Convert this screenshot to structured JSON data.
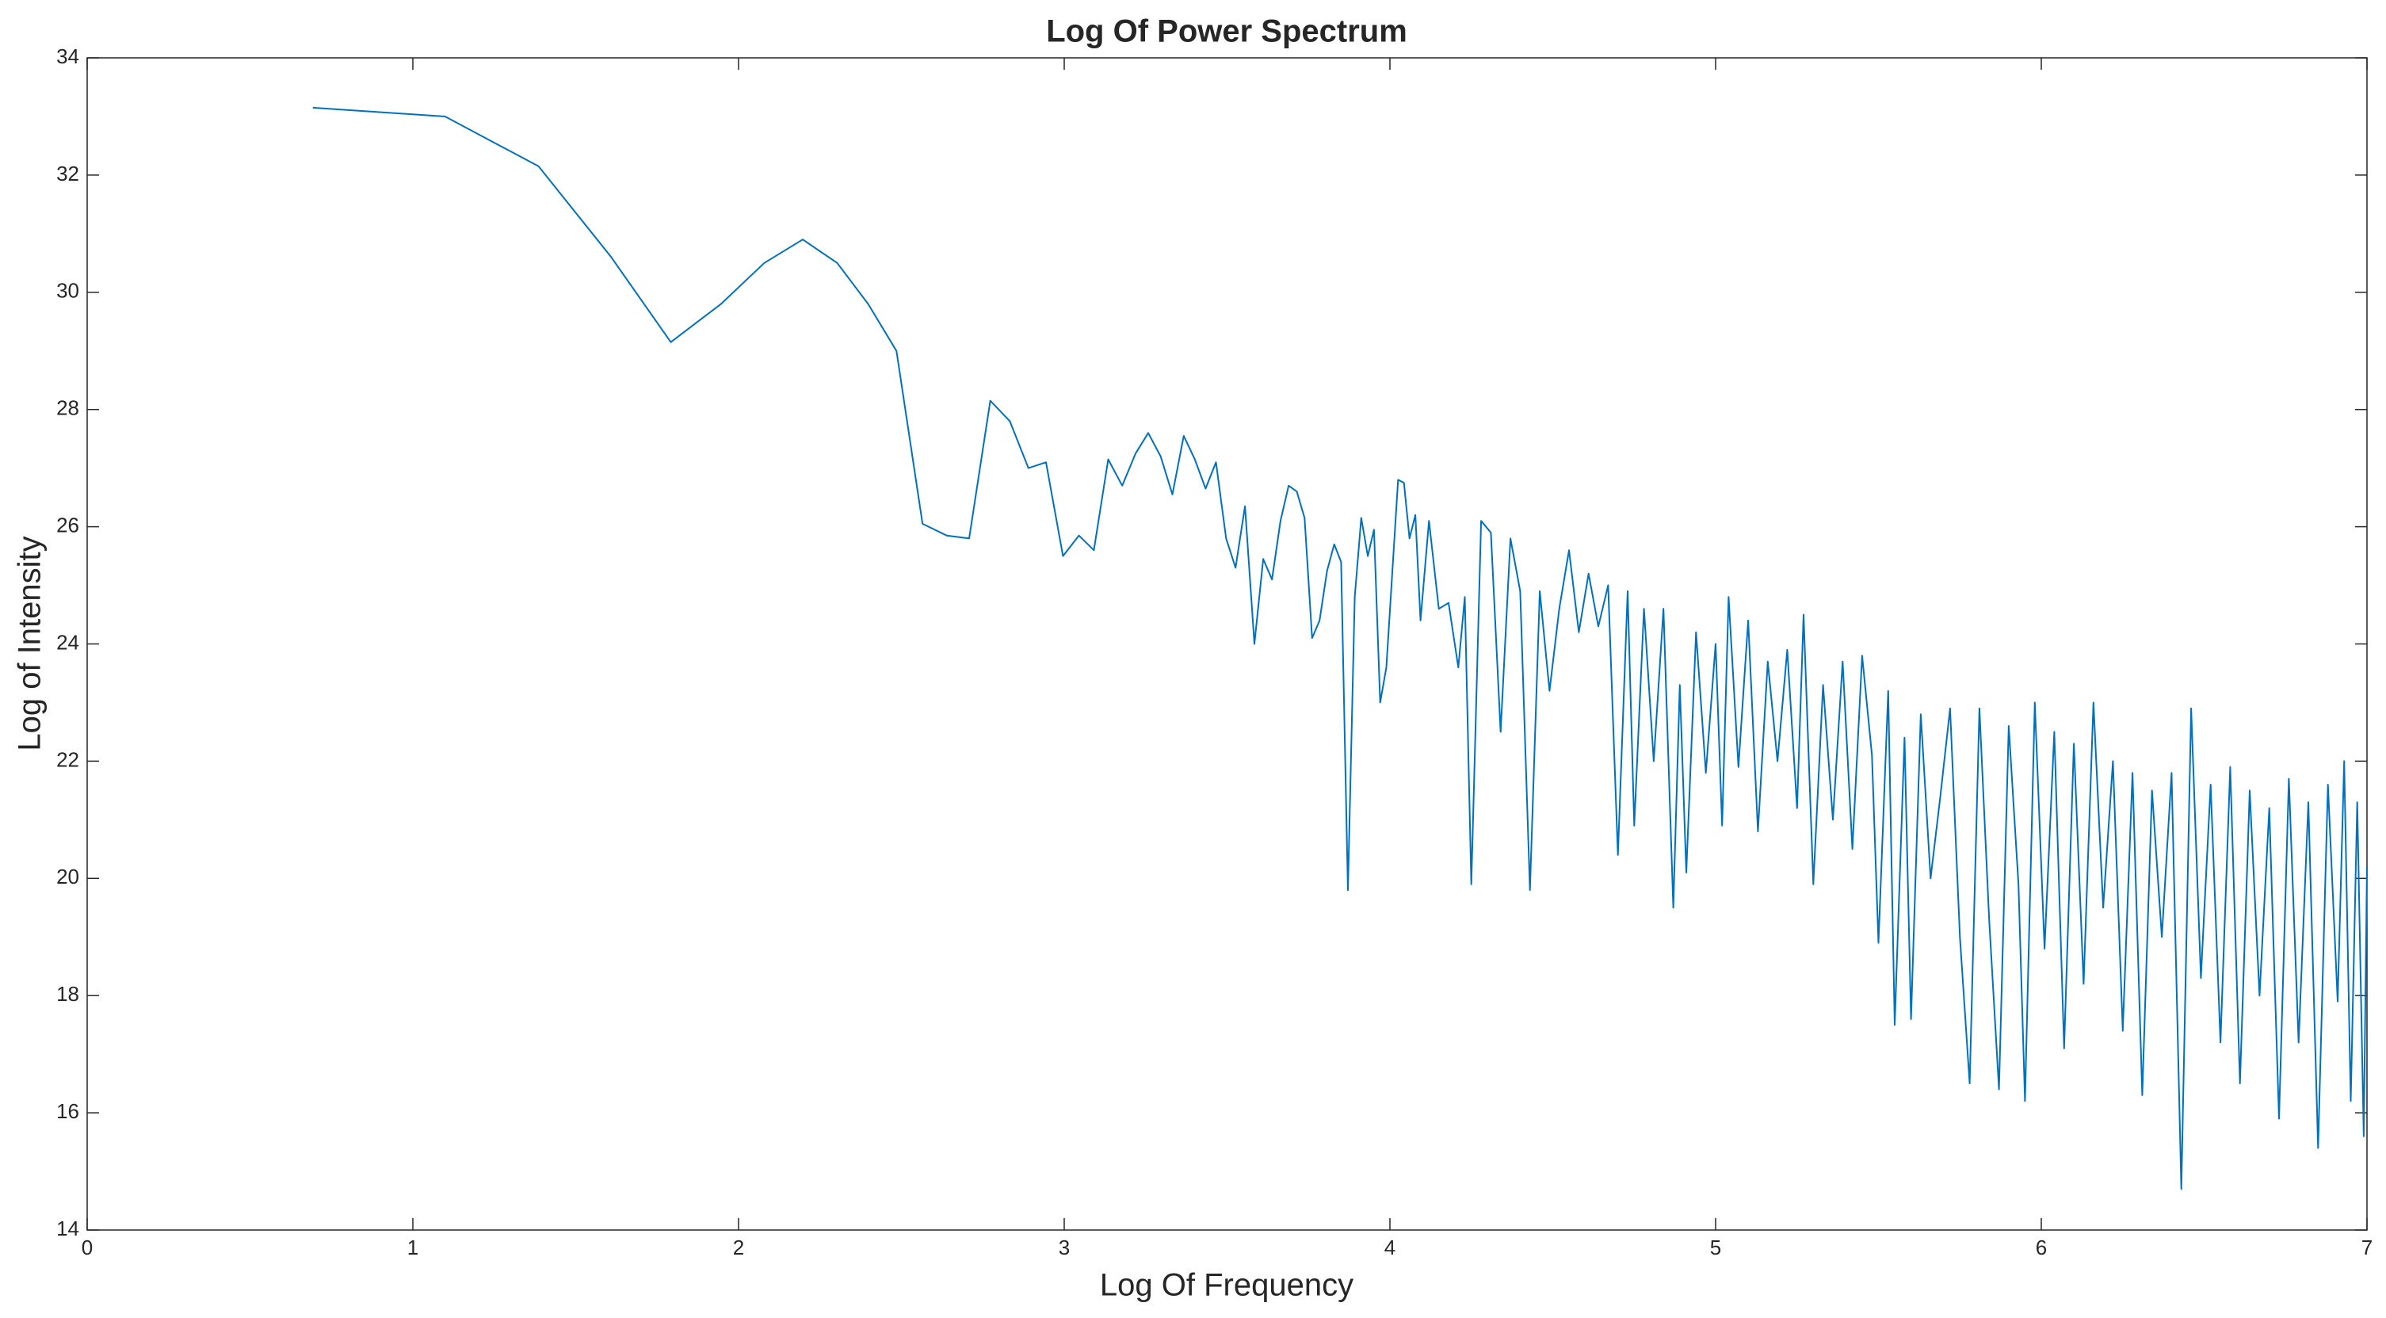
{
  "chart_data": {
    "type": "line",
    "title": "Log Of Power Spectrum",
    "x_label": "Log Of Frequency",
    "y_label": "Log of Intensity",
    "color": "#0072bd",
    "x": [
      0.693,
      1.099,
      1.386,
      1.609,
      1.792,
      1.946,
      2.079,
      2.197,
      2.303,
      2.398,
      2.485,
      2.565,
      2.639,
      2.708,
      2.773,
      2.833,
      2.89,
      2.944,
      2.996,
      3.045,
      3.091,
      3.135,
      3.178,
      3.219,
      3.258,
      3.296,
      3.332,
      3.367,
      3.401,
      3.434,
      3.466,
      3.497,
      3.526,
      3.555,
      3.584,
      3.611,
      3.638,
      3.664,
      3.689,
      3.714,
      3.738,
      3.761,
      3.784,
      3.807,
      3.829,
      3.85,
      3.871,
      3.892,
      3.912,
      3.932,
      3.951,
      3.97,
      3.989,
      4.007,
      4.025,
      4.043,
      4.06,
      4.078,
      4.094,
      4.12,
      4.15,
      4.18,
      4.21,
      4.23,
      4.25,
      4.28,
      4.31,
      4.34,
      4.37,
      4.4,
      4.43,
      4.46,
      4.49,
      4.52,
      4.55,
      4.58,
      4.61,
      4.64,
      4.67,
      4.7,
      4.73,
      4.75,
      4.78,
      4.81,
      4.84,
      4.87,
      4.89,
      4.91,
      4.94,
      4.97,
      5.0,
      5.02,
      5.04,
      5.07,
      5.1,
      5.13,
      5.16,
      5.19,
      5.22,
      5.25,
      5.27,
      5.3,
      5.33,
      5.36,
      5.39,
      5.42,
      5.45,
      5.48,
      5.5,
      5.53,
      5.55,
      5.58,
      5.6,
      5.63,
      5.66,
      5.69,
      5.72,
      5.75,
      5.78,
      5.81,
      5.84,
      5.87,
      5.9,
      5.93,
      5.95,
      5.98,
      6.01,
      6.04,
      6.07,
      6.1,
      6.13,
      6.16,
      6.19,
      6.22,
      6.25,
      6.28,
      6.31,
      6.34,
      6.37,
      6.4,
      6.43,
      6.46,
      6.49,
      6.52,
      6.55,
      6.58,
      6.61,
      6.64,
      6.67,
      6.7,
      6.73,
      6.76,
      6.79,
      6.82,
      6.85,
      6.88,
      6.91,
      6.93,
      6.95,
      6.97,
      6.99,
      7.0
    ],
    "values": [
      33.15,
      33.0,
      32.15,
      30.6,
      29.15,
      29.8,
      30.5,
      30.9,
      30.5,
      29.8,
      29.0,
      26.05,
      25.85,
      25.8,
      28.15,
      27.8,
      27.0,
      27.1,
      25.5,
      25.85,
      25.6,
      27.15,
      26.7,
      27.25,
      27.6,
      27.2,
      26.55,
      27.55,
      27.15,
      26.65,
      27.1,
      25.8,
      25.3,
      26.35,
      24.0,
      25.45,
      25.1,
      26.1,
      26.7,
      26.6,
      26.15,
      24.1,
      24.4,
      25.25,
      25.7,
      25.4,
      19.8,
      24.8,
      26.15,
      25.5,
      25.95,
      23.0,
      23.6,
      25.2,
      26.8,
      26.75,
      25.8,
      26.2,
      24.4,
      26.1,
      24.6,
      24.7,
      23.6,
      24.8,
      19.9,
      26.1,
      25.9,
      22.5,
      25.8,
      24.9,
      19.8,
      24.9,
      23.2,
      24.6,
      25.6,
      24.2,
      25.2,
      24.3,
      25.0,
      20.4,
      24.9,
      20.9,
      24.6,
      22.0,
      24.6,
      19.5,
      23.3,
      20.1,
      24.2,
      21.8,
      24.0,
      20.9,
      24.8,
      21.9,
      24.4,
      20.8,
      23.7,
      22.0,
      23.9,
      21.2,
      24.5,
      19.9,
      23.3,
      21.0,
      23.7,
      20.5,
      23.8,
      22.1,
      18.9,
      23.2,
      17.5,
      22.4,
      17.6,
      22.8,
      20.0,
      21.4,
      22.9,
      19.0,
      16.5,
      22.9,
      19.3,
      16.4,
      22.6,
      19.9,
      16.2,
      23.0,
      18.8,
      22.5,
      17.1,
      22.3,
      18.2,
      23.0,
      19.5,
      22.0,
      17.4,
      21.8,
      16.3,
      21.5,
      19.0,
      21.8,
      14.7,
      22.9,
      18.3,
      21.6,
      17.2,
      21.9,
      16.5,
      21.5,
      18.0,
      21.2,
      15.9,
      21.7,
      17.2,
      21.3,
      15.4,
      21.6,
      17.9,
      22.0,
      16.2,
      21.3,
      15.6,
      20.2
    ],
    "xlim": [
      0,
      7
    ],
    "xticks": [
      0,
      1,
      2,
      3,
      4,
      5,
      6,
      7
    ],
    "ylim": [
      14,
      34
    ],
    "yticks": [
      14,
      16,
      18,
      20,
      22,
      24,
      26,
      28,
      30,
      32,
      34
    ]
  }
}
